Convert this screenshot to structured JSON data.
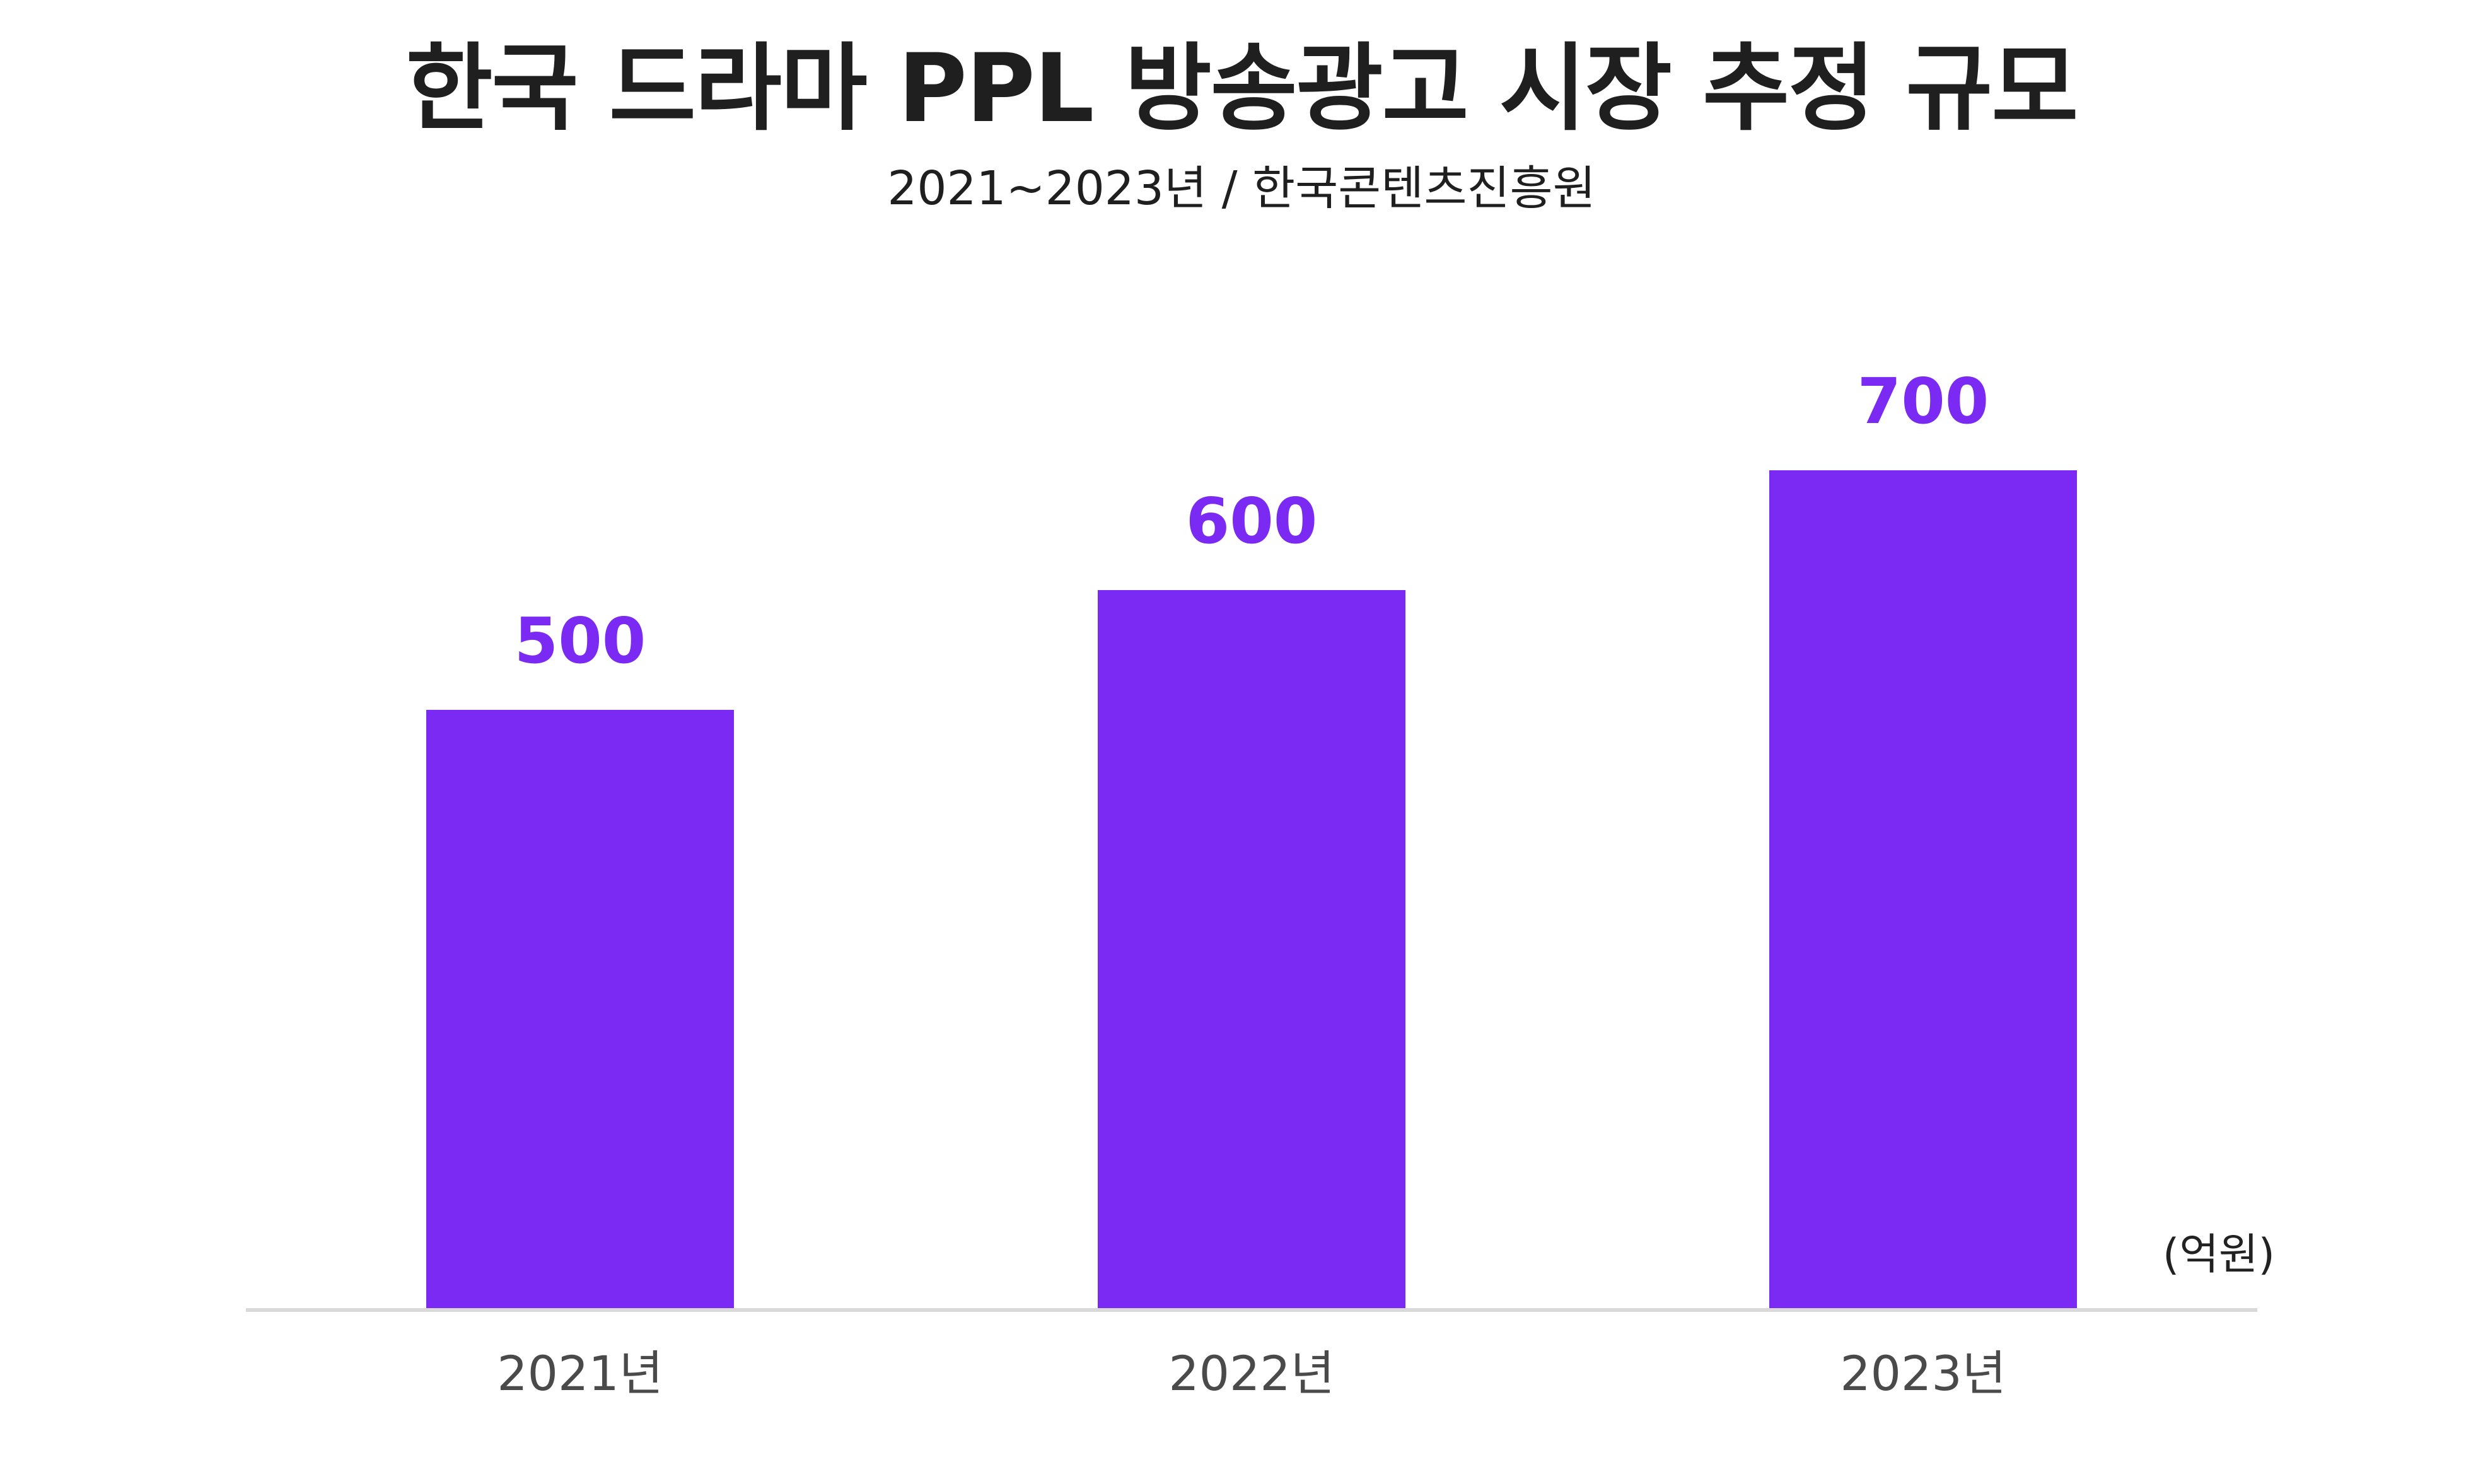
{
  "title": "한국 드라마 PPL 방송광고 시장 추정 규모",
  "subtitle": "2021~2023년 / 한국콘텐츠진흥원",
  "unit": "(억원)",
  "colors": {
    "bar": "#7a2af2",
    "value_label": "#7a2af2",
    "axis": "#d9d9d9",
    "tick_label": "#4a4a4a",
    "title": "#1f1f1f"
  },
  "chart_data": {
    "type": "bar",
    "title": "한국 드라마 PPL 방송광고 시장 추정 규모",
    "subtitle": "2021~2023년 / 한국콘텐츠진흥원",
    "categories": [
      "2021년",
      "2022년",
      "2023년"
    ],
    "values": [
      500,
      600,
      700
    ],
    "value_labels": [
      "500",
      "600",
      "700"
    ],
    "unit": "(억원)",
    "xlabel": "",
    "ylabel": "",
    "ylim": [
      0,
      700
    ],
    "grid": false,
    "legend": "none"
  }
}
